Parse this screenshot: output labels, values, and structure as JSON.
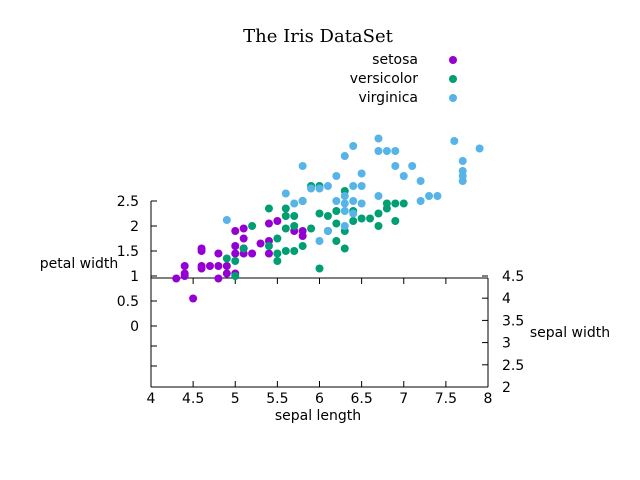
{
  "chart_data": {
    "type": "scatter",
    "title": "The Iris DataSet",
    "xlabel": "sepal length",
    "ylabel_left": "petal width",
    "ylabel_right": "sepal width",
    "legend_position": "top-right",
    "grid": false,
    "xlim": [
      4,
      8
    ],
    "xticks": [
      "4",
      "4.5",
      "5",
      "5.5",
      "6",
      "6.5",
      "7",
      "7.5",
      "8"
    ],
    "left_yticks": [
      {
        "label": "0",
        "value": 0
      },
      {
        "label": "0.5",
        "value": 0.5
      },
      {
        "label": "1",
        "value": 1
      },
      {
        "label": "1.5",
        "value": 1.5
      },
      {
        "label": "2",
        "value": 2
      },
      {
        "label": "2.5",
        "value": 2.5
      }
    ],
    "right_yticks": [
      "2",
      "2.5",
      "3",
      "3.5",
      "4",
      "4.5"
    ],
    "series": [
      {
        "name": "setosa",
        "color": "#9400d3",
        "points": [
          [
            4.3,
            0.95
          ],
          [
            4.4,
            1.0
          ],
          [
            4.4,
            1.05
          ],
          [
            4.4,
            1.2
          ],
          [
            4.5,
            0.55
          ],
          [
            4.6,
            1.15
          ],
          [
            4.6,
            1.2
          ],
          [
            4.6,
            1.5
          ],
          [
            4.6,
            1.55
          ],
          [
            4.7,
            1.2
          ],
          [
            4.8,
            0.95
          ],
          [
            4.8,
            1.2
          ],
          [
            4.8,
            1.45
          ],
          [
            4.9,
            1.05
          ],
          [
            4.9,
            1.2
          ],
          [
            5.0,
            1.05
          ],
          [
            5.0,
            1.45
          ],
          [
            5.0,
            1.6
          ],
          [
            5.0,
            1.9
          ],
          [
            5.1,
            1.45
          ],
          [
            5.1,
            1.55
          ],
          [
            5.1,
            1.75
          ],
          [
            5.1,
            1.95
          ],
          [
            5.2,
            1.45
          ],
          [
            5.3,
            1.65
          ],
          [
            5.4,
            1.45
          ],
          [
            5.4,
            1.7
          ],
          [
            5.4,
            2.05
          ],
          [
            5.5,
            2.1
          ],
          [
            5.7,
            1.9
          ],
          [
            5.8,
            1.8
          ],
          [
            5.8,
            1.9
          ]
        ]
      },
      {
        "name": "versicolor",
        "color": "#009e73",
        "points": [
          [
            4.9,
            1.35
          ],
          [
            5.0,
            1.0
          ],
          [
            5.0,
            1.3
          ],
          [
            5.1,
            1.55
          ],
          [
            5.2,
            2.0
          ],
          [
            5.4,
            1.6
          ],
          [
            5.4,
            2.35
          ],
          [
            5.5,
            1.3
          ],
          [
            5.5,
            1.45
          ],
          [
            5.5,
            1.75
          ],
          [
            5.6,
            1.5
          ],
          [
            5.6,
            1.95
          ],
          [
            5.6,
            2.2
          ],
          [
            5.6,
            2.35
          ],
          [
            5.7,
            1.5
          ],
          [
            5.7,
            2.0
          ],
          [
            5.7,
            2.2
          ],
          [
            5.8,
            1.6
          ],
          [
            5.8,
            2.5
          ],
          [
            5.9,
            1.95
          ],
          [
            5.9,
            2.8
          ],
          [
            6.0,
            1.15
          ],
          [
            6.0,
            2.25
          ],
          [
            6.0,
            2.8
          ],
          [
            6.1,
            1.9
          ],
          [
            6.1,
            2.2
          ],
          [
            6.2,
            2.05
          ],
          [
            6.2,
            2.3
          ],
          [
            6.2,
            1.7
          ],
          [
            6.3,
            2.7
          ],
          [
            6.3,
            1.9
          ],
          [
            6.3,
            1.55
          ],
          [
            6.4,
            2.1
          ],
          [
            6.4,
            2.3
          ],
          [
            6.5,
            2.15
          ],
          [
            6.6,
            2.15
          ],
          [
            6.7,
            2.25
          ],
          [
            6.7,
            2.0
          ],
          [
            6.8,
            2.35
          ],
          [
            6.8,
            2.45
          ],
          [
            6.9,
            2.45
          ],
          [
            6.9,
            2.1
          ],
          [
            7.0,
            2.45
          ]
        ]
      },
      {
        "name": "virginica",
        "color": "#56b4e9",
        "points": [
          [
            4.9,
            2.12
          ],
          [
            5.6,
            2.65
          ],
          [
            5.7,
            2.45
          ],
          [
            5.8,
            3.2
          ],
          [
            5.8,
            2.5
          ],
          [
            5.9,
            2.75
          ],
          [
            6.0,
            1.7
          ],
          [
            6.0,
            2.75
          ],
          [
            6.1,
            2.8
          ],
          [
            6.1,
            1.9
          ],
          [
            6.2,
            2.5
          ],
          [
            6.2,
            3.0
          ],
          [
            6.3,
            2.0
          ],
          [
            6.3,
            2.3
          ],
          [
            6.3,
            2.45
          ],
          [
            6.3,
            2.6
          ],
          [
            6.3,
            3.4
          ],
          [
            6.4,
            2.25
          ],
          [
            6.4,
            2.5
          ],
          [
            6.4,
            2.8
          ],
          [
            6.4,
            3.6
          ],
          [
            6.5,
            2.45
          ],
          [
            6.5,
            2.8
          ],
          [
            6.5,
            3.05
          ],
          [
            6.7,
            3.5
          ],
          [
            6.7,
            3.75
          ],
          [
            6.7,
            2.6
          ],
          [
            6.8,
            3.5
          ],
          [
            6.9,
            3.5
          ],
          [
            6.9,
            3.2
          ],
          [
            7.0,
            3.0
          ],
          [
            7.1,
            3.2
          ],
          [
            7.2,
            2.5
          ],
          [
            7.2,
            2.9
          ],
          [
            7.3,
            2.6
          ],
          [
            7.4,
            2.6
          ],
          [
            7.6,
            3.7
          ],
          [
            7.7,
            3.0
          ],
          [
            7.7,
            2.9
          ],
          [
            7.7,
            3.1
          ],
          [
            7.7,
            3.3
          ],
          [
            7.9,
            3.55
          ]
        ]
      }
    ]
  }
}
